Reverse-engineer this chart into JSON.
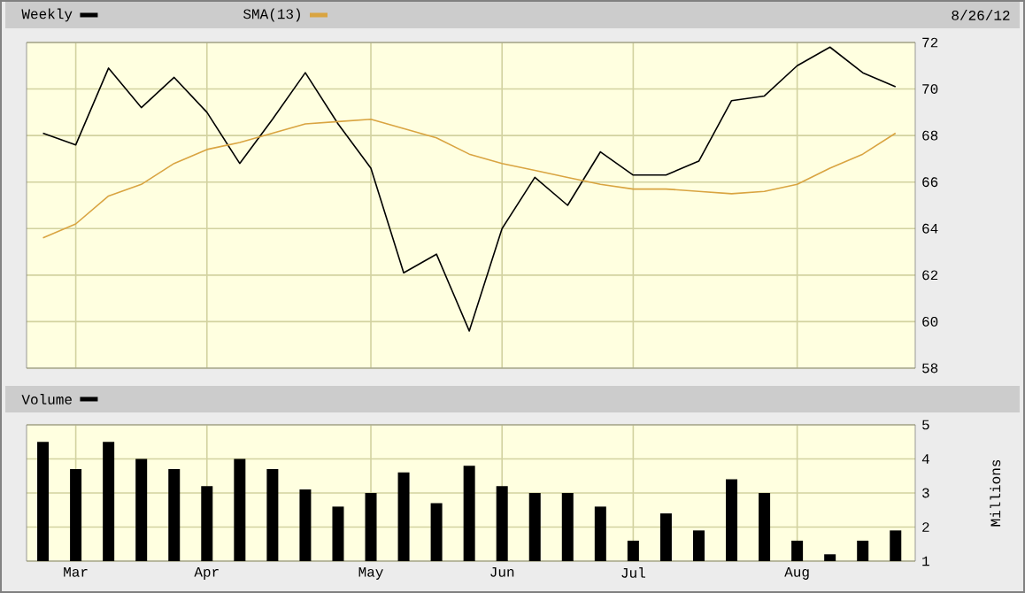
{
  "chart_data": [
    {
      "type": "line",
      "annotations": [
        "8/26/12"
      ],
      "categories": [
        null,
        null,
        null,
        null,
        null,
        null,
        null,
        null,
        null,
        null,
        null,
        null,
        null,
        null,
        null,
        null,
        null,
        null,
        null,
        null,
        null,
        null,
        null,
        null,
        null,
        null,
        null
      ],
      "series": [
        {
          "name": "Weekly",
          "color": "#000000",
          "values": [
            68.1,
            67.6,
            70.9,
            69.2,
            70.5,
            69.0,
            66.8,
            68.7,
            70.7,
            68.5,
            66.6,
            62.1,
            62.9,
            59.6,
            64.0,
            66.2,
            65.0,
            67.3,
            66.3,
            66.3,
            66.9,
            69.5,
            69.7,
            71.0,
            71.8,
            70.7,
            70.1
          ]
        },
        {
          "name": "SMA(13)",
          "color": "#d9a441",
          "values": [
            63.6,
            64.2,
            65.4,
            65.9,
            66.8,
            67.4,
            67.7,
            68.1,
            68.5,
            68.6,
            68.7,
            68.3,
            67.9,
            67.2,
            66.8,
            66.5,
            66.2,
            65.9,
            65.7,
            65.7,
            65.6,
            65.5,
            65.6,
            65.9,
            66.6,
            67.2,
            68.1
          ]
        }
      ],
      "ylim": [
        58,
        72
      ],
      "yticks": [
        58,
        60,
        62,
        64,
        66,
        68,
        70,
        72
      ],
      "grid": true,
      "legend": "top left",
      "tick_labels": "y"
    },
    {
      "type": "bar",
      "ylabel": "Millions",
      "categories": [
        null,
        "Mar",
        null,
        null,
        null,
        "Apr",
        null,
        null,
        null,
        null,
        "May",
        null,
        null,
        null,
        "Jun",
        null,
        null,
        null,
        "Jul",
        null,
        null,
        null,
        null,
        "Aug",
        null,
        null,
        null
      ],
      "series": [
        {
          "name": "Volume",
          "color": "#000000",
          "values": [
            4.5,
            3.7,
            4.5,
            4.0,
            3.7,
            3.2,
            4.0,
            3.7,
            3.1,
            2.6,
            3.0,
            3.6,
            2.7,
            3.8,
            3.2,
            3.0,
            3.0,
            2.6,
            1.6,
            2.4,
            1.9,
            3.4,
            3.0,
            1.6,
            1.2,
            1.6,
            1.9
          ]
        }
      ],
      "ylim": [
        1,
        5
      ],
      "yticks": [
        1,
        2,
        3,
        4,
        5
      ],
      "grid": true,
      "legend": "top left"
    }
  ]
}
